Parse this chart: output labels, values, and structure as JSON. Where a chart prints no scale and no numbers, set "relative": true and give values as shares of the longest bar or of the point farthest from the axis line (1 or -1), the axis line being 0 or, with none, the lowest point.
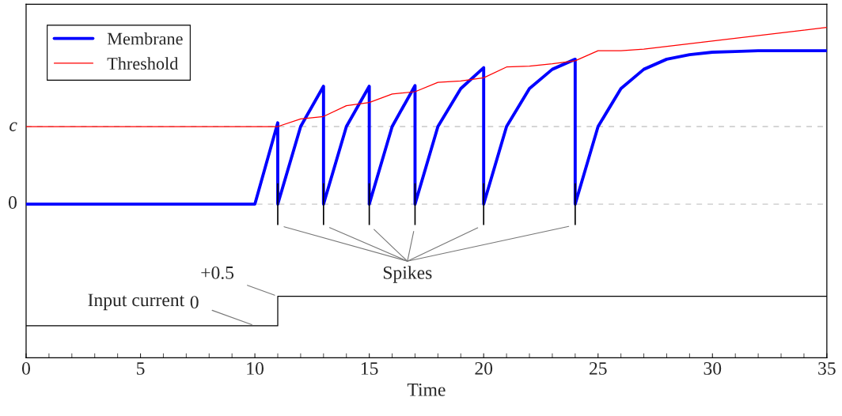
{
  "chart_data": {
    "type": "line",
    "xlabel": "Time",
    "relative": true,
    "xlim": [
      0,
      35
    ],
    "xticks": [
      0,
      5,
      10,
      15,
      20,
      25,
      30,
      35
    ],
    "ref_lines": [
      {
        "axis": "y",
        "value": 0,
        "label": "0",
        "color": "#c8c8c8",
        "line_style": "dashed"
      },
      {
        "axis": "y",
        "value": 0.439,
        "label": "c",
        "color": "#c8c8c8",
        "line_style": "dashed"
      }
    ],
    "legend": "top left",
    "series": [
      {
        "name": "Membrane",
        "color": "#0000ff",
        "x": [
          0,
          10,
          11,
          11,
          12,
          13,
          13,
          14,
          15,
          15,
          16,
          17,
          17,
          18,
          19,
          20,
          20,
          21,
          22,
          23,
          24,
          24,
          25,
          26,
          27,
          28,
          29,
          30,
          31,
          32,
          33,
          34,
          35
        ],
        "values": [
          0,
          0,
          0.46,
          0,
          0.439,
          0.667,
          0,
          0.439,
          0.667,
          0,
          0.439,
          0.671,
          0,
          0.439,
          0.654,
          0.772,
          0,
          0.439,
          0.654,
          0.763,
          0.82,
          0,
          0.439,
          0.654,
          0.763,
          0.82,
          0.846,
          0.86,
          0.864,
          0.868,
          0.868,
          0.868,
          0.868
        ]
      },
      {
        "name": "Threshold",
        "color": "#ff0000",
        "x": [
          0,
          11,
          12,
          13,
          14,
          15,
          16,
          17,
          18,
          19,
          20,
          21,
          22,
          23,
          24,
          25,
          26,
          27,
          35
        ],
        "values": [
          0.439,
          0.439,
          0.482,
          0.496,
          0.557,
          0.575,
          0.623,
          0.636,
          0.689,
          0.697,
          0.715,
          0.776,
          0.781,
          0.794,
          0.811,
          0.868,
          0.868,
          0.877,
          1
        ]
      },
      {
        "name": "Spikes",
        "type": "line",
        "color": "#000000",
        "x": [
          11,
          11,
          null,
          13,
          13,
          null,
          15,
          15,
          null,
          17,
          17,
          null,
          20,
          20,
          null,
          24,
          24
        ],
        "values": [
          0.118,
          -0.118,
          null,
          0.118,
          -0.118,
          null,
          0.118,
          -0.118,
          null,
          0.118,
          -0.118,
          null,
          0.118,
          -0.118,
          null,
          0.118,
          -0.118
        ]
      },
      {
        "name": "Input current",
        "type": "step",
        "color": "#000000",
        "x": [
          0,
          11,
          35
        ],
        "values": [
          -0.689,
          -0.522,
          -0.522
        ]
      }
    ],
    "annotations": [
      {
        "text": "0",
        "x": 10,
        "y": -0.689
      },
      {
        "text": "+0.5",
        "x": 11,
        "y": -0.522
      }
    ]
  }
}
